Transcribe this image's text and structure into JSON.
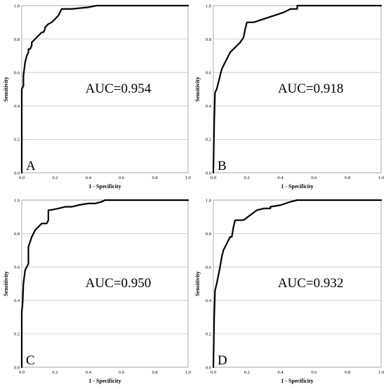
{
  "chart_data": [
    {
      "type": "line",
      "panel_label": "A",
      "annotation": "AUC=0.954",
      "xlabel": "1 - Specificity",
      "ylabel": "Sensitivity",
      "xlim": [
        0,
        1
      ],
      "ylim": [
        0,
        1
      ],
      "x_ticks": [
        "0.0",
        "0.2",
        "0.4",
        "0.6",
        "0.8",
        "1.0"
      ],
      "y_ticks": [
        "0.0",
        "0.2",
        "0.4",
        "0.6",
        "0.8",
        "1.0"
      ],
      "grid": "horizontal",
      "series": [
        {
          "x": [
            0,
            0,
            0.01,
            0.01,
            0.015,
            0.02,
            0.03,
            0.04,
            0.04,
            0.05,
            0.06,
            0.06,
            0.08,
            0.1,
            0.12,
            0.13,
            0.14,
            0.14,
            0.16,
            0.18,
            0.2,
            0.22,
            0.23,
            0.24,
            0.3,
            0.4,
            0.45,
            0.6,
            1.0
          ],
          "y": [
            0,
            0.5,
            0.52,
            0.58,
            0.62,
            0.66,
            0.7,
            0.72,
            0.74,
            0.74,
            0.76,
            0.78,
            0.8,
            0.82,
            0.84,
            0.84,
            0.86,
            0.87,
            0.89,
            0.9,
            0.92,
            0.94,
            0.96,
            0.98,
            0.98,
            0.99,
            1.0,
            1.0,
            1.0
          ]
        }
      ]
    },
    {
      "type": "line",
      "panel_label": "B",
      "annotation": "AUC=0.918",
      "xlabel": "1 - Specificity",
      "ylabel": "Sensitivity",
      "xlim": [
        0,
        1
      ],
      "ylim": [
        0,
        1
      ],
      "x_ticks": [
        "0.0",
        "0.2",
        "0.4",
        "0.6",
        "0.8",
        "1.0"
      ],
      "y_ticks": [
        "0.0",
        "0.2",
        "0.4",
        "0.6",
        "0.8",
        "1.0"
      ],
      "grid": "horizontal",
      "series": [
        {
          "x": [
            0,
            0.005,
            0.01,
            0.02,
            0.03,
            0.04,
            0.05,
            0.06,
            0.08,
            0.1,
            0.12,
            0.14,
            0.16,
            0.18,
            0.19,
            0.2,
            0.22,
            0.24,
            0.3,
            0.36,
            0.42,
            0.46,
            0.5,
            0.5,
            0.6,
            1.0
          ],
          "y": [
            0,
            0.3,
            0.48,
            0.5,
            0.54,
            0.58,
            0.62,
            0.64,
            0.68,
            0.72,
            0.74,
            0.76,
            0.78,
            0.81,
            0.86,
            0.9,
            0.9,
            0.9,
            0.92,
            0.94,
            0.96,
            0.98,
            0.98,
            1.0,
            1.0,
            1.0
          ]
        }
      ]
    },
    {
      "type": "line",
      "panel_label": "C",
      "annotation": "AUC=0.950",
      "xlabel": "1 - Specificity",
      "ylabel": "Sensitivity",
      "xlim": [
        0,
        1
      ],
      "ylim": [
        0,
        1
      ],
      "x_ticks": [
        "0.0",
        "0.2",
        "0.4",
        "0.6",
        "0.8",
        "1.0"
      ],
      "y_ticks": [
        "0.0",
        "0.2",
        "0.4",
        "0.6",
        "0.8",
        "1.0"
      ],
      "grid": "horizontal",
      "series": [
        {
          "x": [
            0,
            0,
            0.005,
            0.01,
            0.02,
            0.03,
            0.04,
            0.04,
            0.05,
            0.06,
            0.08,
            0.1,
            0.12,
            0.13,
            0.14,
            0.15,
            0.16,
            0.16,
            0.17,
            0.22,
            0.26,
            0.3,
            0.34,
            0.4,
            0.44,
            0.48,
            0.5,
            0.6,
            1.0
          ],
          "y": [
            0,
            0.33,
            0.38,
            0.5,
            0.58,
            0.6,
            0.62,
            0.72,
            0.75,
            0.78,
            0.82,
            0.84,
            0.86,
            0.86,
            0.86,
            0.86,
            0.88,
            0.94,
            0.94,
            0.95,
            0.96,
            0.96,
            0.97,
            0.98,
            0.98,
            0.99,
            1.0,
            1.0,
            1.0
          ]
        }
      ]
    },
    {
      "type": "line",
      "panel_label": "D",
      "annotation": "AUC=0.932",
      "xlabel": "1 - Specificity",
      "ylabel": "Sensitivity",
      "xlim": [
        0,
        1
      ],
      "ylim": [
        0,
        1
      ],
      "x_ticks": [
        "0.0",
        "0.2",
        "0.4",
        "0.6",
        "0.8",
        "1.0"
      ],
      "y_ticks": [
        "0.0",
        "0.2",
        "0.4",
        "0.6",
        "0.8",
        "1.0"
      ],
      "grid": "horizontal",
      "series": [
        {
          "x": [
            0,
            0.005,
            0.01,
            0.02,
            0.03,
            0.04,
            0.05,
            0.06,
            0.08,
            0.1,
            0.11,
            0.12,
            0.13,
            0.14,
            0.18,
            0.22,
            0.26,
            0.3,
            0.34,
            0.34,
            0.4,
            0.46,
            0.5,
            0.6,
            1.0
          ],
          "y": [
            0,
            0.3,
            0.46,
            0.5,
            0.55,
            0.6,
            0.66,
            0.7,
            0.74,
            0.78,
            0.78,
            0.84,
            0.88,
            0.88,
            0.88,
            0.91,
            0.94,
            0.95,
            0.95,
            0.96,
            0.97,
            0.99,
            1.0,
            1.0,
            1.0
          ]
        }
      ]
    }
  ]
}
